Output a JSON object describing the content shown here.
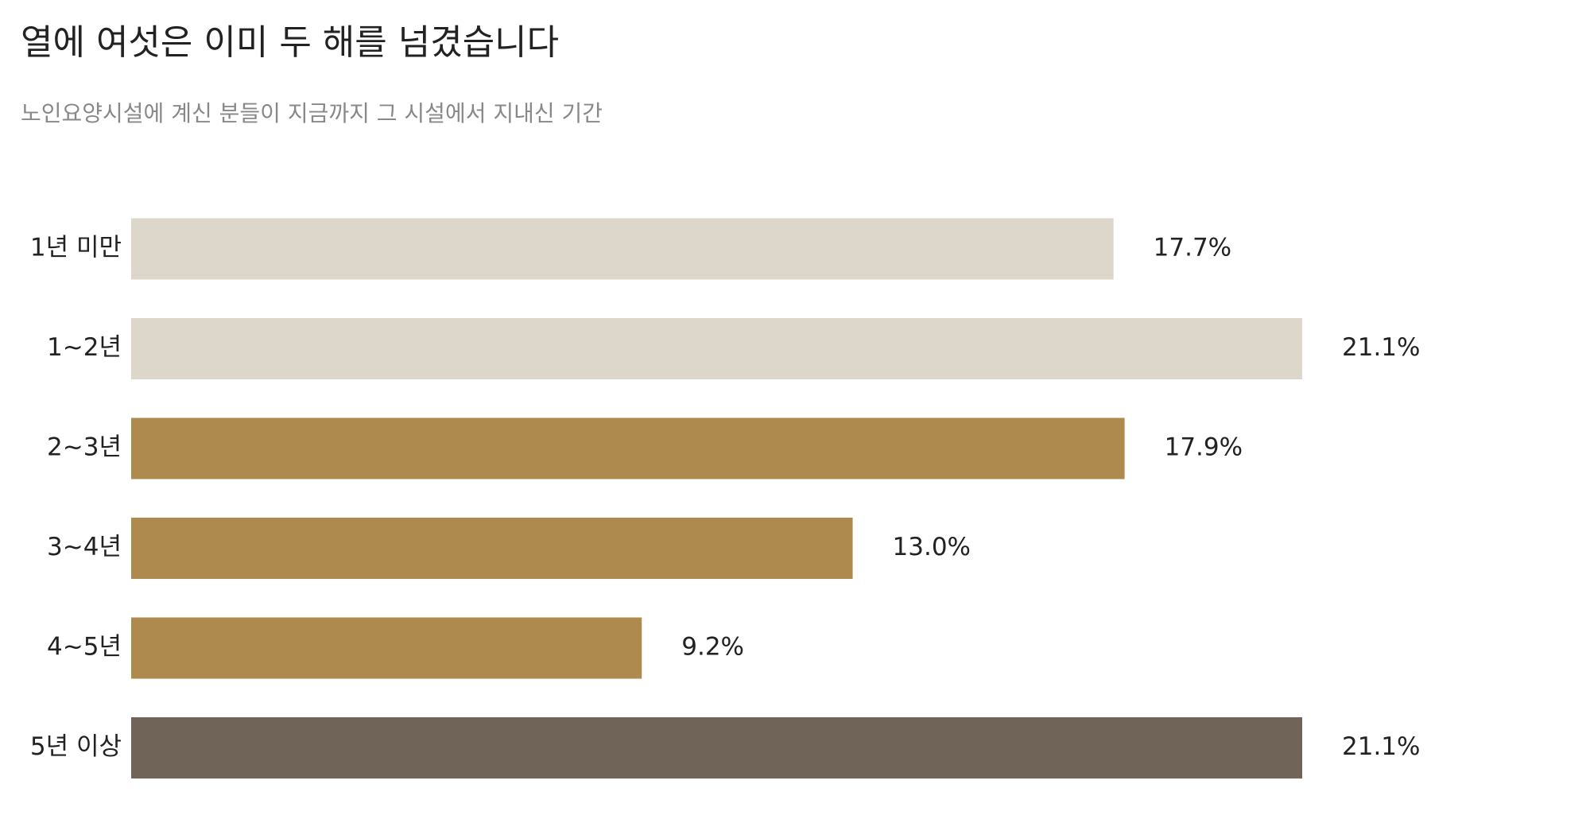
{
  "chart_data": {
    "type": "bar",
    "orientation": "horizontal",
    "title": "열에 여섯은 이미 두 해를 넘겼습니다",
    "subtitle": "노인요양시설에 계신 분들이 지금까지 그 시설에서 지내신 기간",
    "categories": [
      "1년 미만",
      "1~2년",
      "2~3년",
      "3~4년",
      "4~5년",
      "5년 이상"
    ],
    "values": [
      17.7,
      21.1,
      17.9,
      13.0,
      9.2,
      21.1
    ],
    "value_labels": [
      "17.7%",
      "21.1%",
      "17.9%",
      "13.0%",
      "9.2%",
      "21.1%"
    ],
    "colors": [
      "#ddd7cb",
      "#ddd7cb",
      "#af8a4e",
      "#af8a4e",
      "#af8a4e",
      "#6f6457"
    ]
  }
}
